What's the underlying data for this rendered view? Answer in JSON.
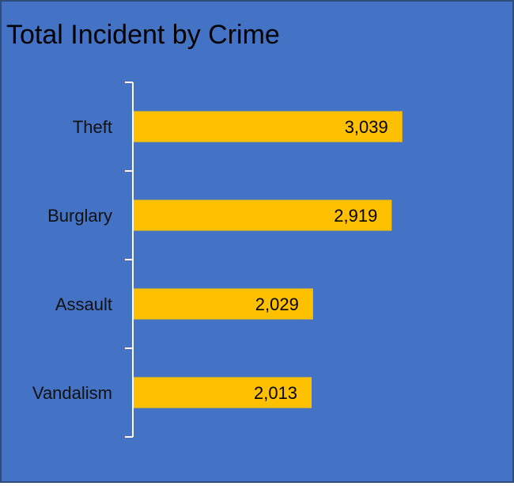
{
  "chart_data": {
    "type": "bar",
    "orientation": "horizontal",
    "title": "Total Incident by Crime",
    "categories": [
      "Theft",
      "Burglary",
      "Assault",
      "Vandalism"
    ],
    "values": [
      3039,
      2919,
      2029,
      2013
    ],
    "data_labels": [
      "3,039",
      "2,919",
      "2,029",
      "2,013"
    ],
    "xlabel": "",
    "ylabel": "",
    "xlim": [
      0,
      4000
    ],
    "grid": false,
    "legend": "none",
    "colors": {
      "background": "#4472c4",
      "bar": "#ffc000",
      "axis": "#ffffff",
      "text": "#000000",
      "category_text": "#111111"
    }
  }
}
